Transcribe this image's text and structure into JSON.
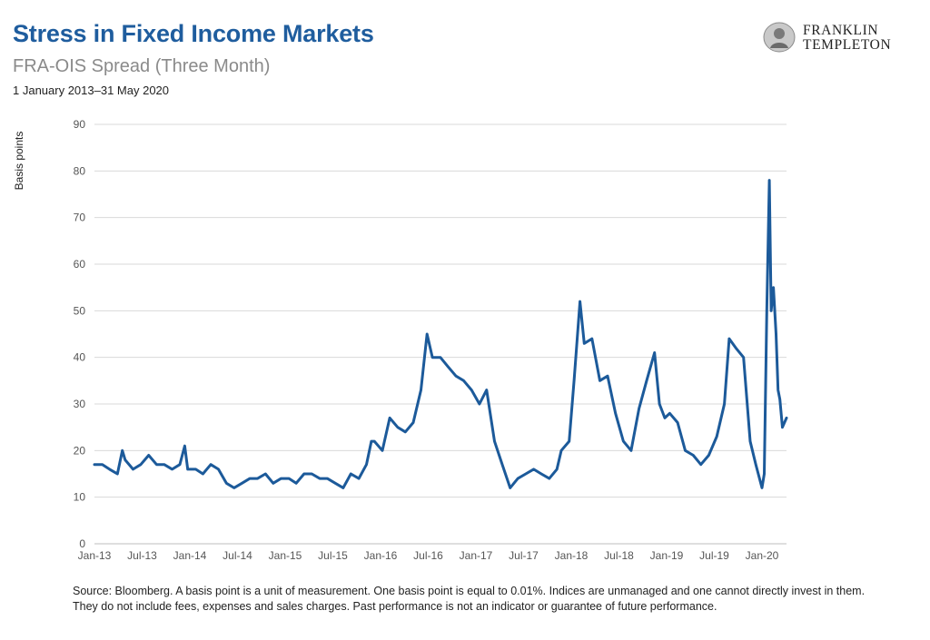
{
  "header": {
    "title": "Stress in Fixed Income Markets",
    "subtitle": "FRA-OIS Spread (Three Month)",
    "date_range": "1 January 2013–31 May 2020"
  },
  "logo": {
    "line1": "FRANKLIN",
    "line2": "TEMPLETON"
  },
  "footer": {
    "source_note": "Source: Bloomberg. A basis point is a unit of measurement. One basis point is equal to 0.01%. Indices are unmanaged and one cannot directly invest in them. They do not include fees, expenses and sales charges. Past performance is not an indicator or guarantee of future performance."
  },
  "colors": {
    "series": "#1c5a9a",
    "title": "#1f5d9e",
    "subtitle": "#8a8a8a",
    "grid": "#d9d9d9"
  },
  "chart_data": {
    "type": "line",
    "title": "FRA-OIS Spread (Three Month)",
    "xlabel": "",
    "ylabel": "Basis points",
    "ylim": [
      0,
      90
    ],
    "yticks": [
      0,
      10,
      20,
      30,
      40,
      50,
      60,
      70,
      80,
      90
    ],
    "grid": true,
    "legend": "none",
    "x_tick_labels": [
      "Jan-13",
      "Jul-13",
      "Jan-14",
      "Jul-14",
      "Jan-15",
      "Jul-15",
      "Jan-16",
      "Jul-16",
      "Jan-17",
      "Jul-17",
      "Jan-18",
      "Jul-18",
      "Jan-19",
      "Jul-19",
      "Jan-20"
    ],
    "x_range": [
      "2013-01-01",
      "2020-05-31"
    ],
    "series": [
      {
        "points": [
          [
            "2013-01-01",
            17
          ],
          [
            "2013-02-01",
            17
          ],
          [
            "2013-03-01",
            16
          ],
          [
            "2013-04-01",
            15
          ],
          [
            "2013-04-20",
            20
          ],
          [
            "2013-05-01",
            18
          ],
          [
            "2013-06-01",
            16
          ],
          [
            "2013-07-01",
            17
          ],
          [
            "2013-08-01",
            19
          ],
          [
            "2013-09-01",
            17
          ],
          [
            "2013-10-01",
            17
          ],
          [
            "2013-11-01",
            16
          ],
          [
            "2013-12-01",
            17
          ],
          [
            "2013-12-20",
            21
          ],
          [
            "2014-01-01",
            16
          ],
          [
            "2014-02-01",
            16
          ],
          [
            "2014-03-01",
            15
          ],
          [
            "2014-04-01",
            17
          ],
          [
            "2014-05-01",
            16
          ],
          [
            "2014-06-01",
            13
          ],
          [
            "2014-07-01",
            12
          ],
          [
            "2014-08-01",
            13
          ],
          [
            "2014-09-01",
            14
          ],
          [
            "2014-10-01",
            14
          ],
          [
            "2014-11-01",
            15
          ],
          [
            "2014-12-01",
            13
          ],
          [
            "2015-01-01",
            14
          ],
          [
            "2015-02-01",
            14
          ],
          [
            "2015-03-01",
            13
          ],
          [
            "2015-04-01",
            15
          ],
          [
            "2015-05-01",
            15
          ],
          [
            "2015-06-01",
            14
          ],
          [
            "2015-07-01",
            14
          ],
          [
            "2015-08-01",
            13
          ],
          [
            "2015-09-01",
            12
          ],
          [
            "2015-10-01",
            15
          ],
          [
            "2015-11-01",
            14
          ],
          [
            "2015-12-01",
            17
          ],
          [
            "2015-12-20",
            22
          ],
          [
            "2016-01-01",
            22
          ],
          [
            "2016-02-01",
            20
          ],
          [
            "2016-03-01",
            27
          ],
          [
            "2016-04-01",
            25
          ],
          [
            "2016-05-01",
            24
          ],
          [
            "2016-06-01",
            26
          ],
          [
            "2016-07-01",
            33
          ],
          [
            "2016-07-25",
            45
          ],
          [
            "2016-08-15",
            40
          ],
          [
            "2016-09-15",
            40
          ],
          [
            "2016-10-15",
            38
          ],
          [
            "2016-11-15",
            36
          ],
          [
            "2016-12-15",
            35
          ],
          [
            "2017-01-15",
            33
          ],
          [
            "2017-02-15",
            30
          ],
          [
            "2017-03-15",
            33
          ],
          [
            "2017-04-15",
            22
          ],
          [
            "2017-05-15",
            17
          ],
          [
            "2017-06-15",
            12
          ],
          [
            "2017-07-15",
            14
          ],
          [
            "2017-08-15",
            15
          ],
          [
            "2017-09-15",
            16
          ],
          [
            "2017-10-15",
            15
          ],
          [
            "2017-11-15",
            14
          ],
          [
            "2017-12-15",
            16
          ],
          [
            "2018-01-01",
            20
          ],
          [
            "2018-02-01",
            22
          ],
          [
            "2018-02-20",
            35
          ],
          [
            "2018-03-15",
            52
          ],
          [
            "2018-04-01",
            43
          ],
          [
            "2018-05-01",
            44
          ],
          [
            "2018-06-01",
            35
          ],
          [
            "2018-07-01",
            36
          ],
          [
            "2018-08-01",
            28
          ],
          [
            "2018-09-01",
            22
          ],
          [
            "2018-10-01",
            20
          ],
          [
            "2018-11-01",
            29
          ],
          [
            "2018-12-01",
            35
          ],
          [
            "2019-01-01",
            41
          ],
          [
            "2019-01-20",
            30
          ],
          [
            "2019-02-10",
            27
          ],
          [
            "2019-03-01",
            28
          ],
          [
            "2019-04-01",
            26
          ],
          [
            "2019-05-01",
            20
          ],
          [
            "2019-06-01",
            19
          ],
          [
            "2019-07-01",
            17
          ],
          [
            "2019-08-01",
            19
          ],
          [
            "2019-09-01",
            23
          ],
          [
            "2019-10-01",
            30
          ],
          [
            "2019-10-20",
            44
          ],
          [
            "2019-11-15",
            42
          ],
          [
            "2019-12-15",
            40
          ],
          [
            "2020-01-10",
            22
          ],
          [
            "2020-02-01",
            17
          ],
          [
            "2020-02-25",
            12
          ],
          [
            "2020-03-05",
            15
          ],
          [
            "2020-03-15",
            50
          ],
          [
            "2020-03-25",
            78
          ],
          [
            "2020-04-01",
            50
          ],
          [
            "2020-04-10",
            55
          ],
          [
            "2020-04-20",
            45
          ],
          [
            "2020-04-28",
            33
          ],
          [
            "2020-05-05",
            31
          ],
          [
            "2020-05-15",
            25
          ],
          [
            "2020-05-31",
            27
          ]
        ]
      }
    ]
  }
}
